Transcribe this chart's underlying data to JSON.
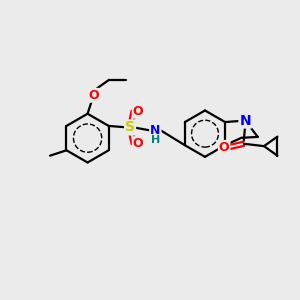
{
  "background_color": "#ebebeb",
  "line_color": "#000000",
  "bond_width": 1.6,
  "atom_colors": {
    "S": "#cccc00",
    "O": "#ff0000",
    "N": "#0000ff",
    "H": "#008080",
    "C": "#000000"
  },
  "figsize": [
    3.0,
    3.0
  ],
  "dpi": 100
}
